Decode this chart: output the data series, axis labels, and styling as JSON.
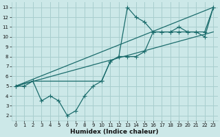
{
  "bg_color": "#cce8e8",
  "grid_color": "#a8cece",
  "line_color": "#1a6b6b",
  "xlabel": "Humidex (Indice chaleur)",
  "xlim": [
    -0.5,
    23.5
  ],
  "ylim": [
    1.5,
    13.5
  ],
  "xticks": [
    0,
    1,
    2,
    3,
    4,
    5,
    6,
    7,
    8,
    9,
    10,
    11,
    12,
    13,
    14,
    15,
    16,
    17,
    18,
    19,
    20,
    21,
    22,
    23
  ],
  "yticks": [
    2,
    3,
    4,
    5,
    6,
    7,
    8,
    9,
    10,
    11,
    12,
    13
  ],
  "line1_x": [
    0,
    1,
    2,
    3,
    4,
    5,
    6,
    7,
    8,
    9,
    10,
    11,
    12,
    13,
    14,
    15,
    16,
    17,
    18,
    19,
    20,
    21,
    22,
    23
  ],
  "line1_y": [
    5,
    5,
    5.5,
    3.5,
    4,
    3.5,
    2,
    2.5,
    4,
    5,
    5.5,
    7.5,
    8,
    13,
    12,
    11.5,
    10.5,
    10.5,
    10.5,
    11,
    10.5,
    10.5,
    10,
    13
  ],
  "line2_x": [
    0,
    2,
    10,
    11,
    12,
    13,
    14,
    15,
    16,
    17,
    18,
    19,
    20,
    21,
    22,
    23
  ],
  "line2_y": [
    5,
    5.5,
    5.5,
    7.5,
    8,
    8,
    8,
    8.5,
    10.5,
    10.5,
    10.5,
    10.5,
    10.5,
    10.5,
    10.5,
    13
  ],
  "line3_x": [
    0,
    23
  ],
  "line3_y": [
    5,
    13
  ],
  "line4_x": [
    0,
    23
  ],
  "line4_y": [
    5,
    10.5
  ]
}
